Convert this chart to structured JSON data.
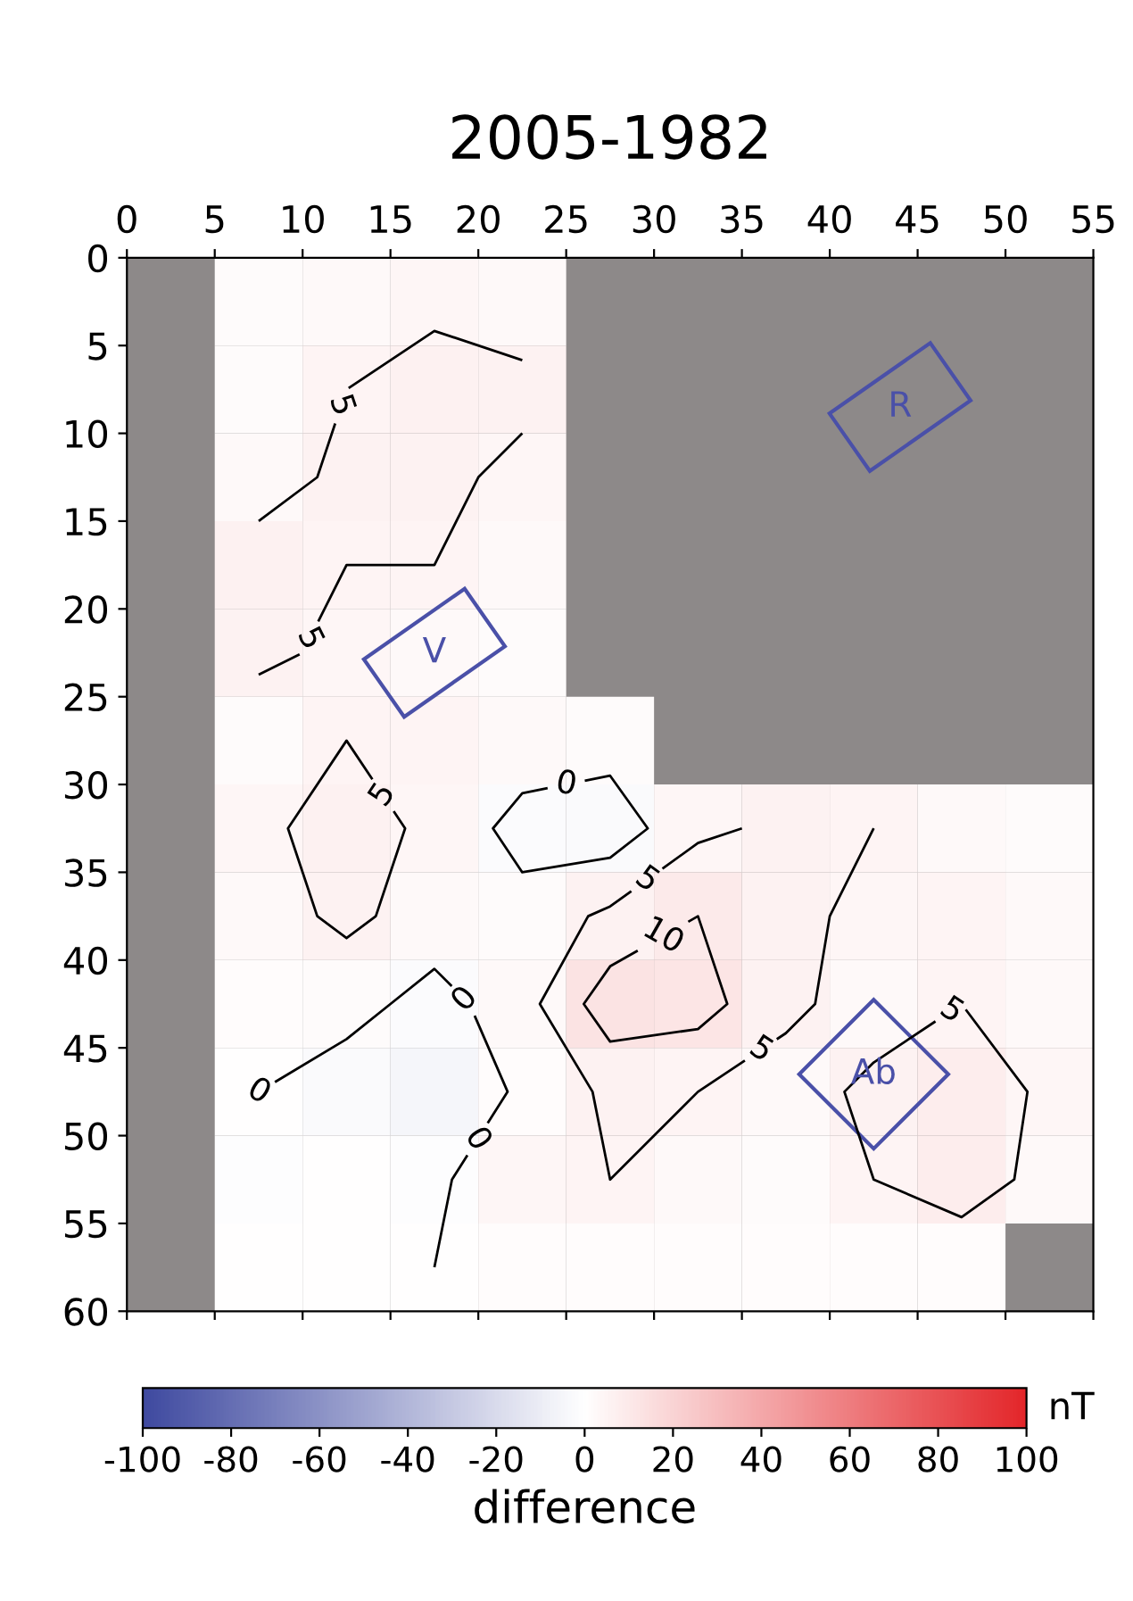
{
  "chart_data": {
    "type": "heatmap",
    "title": "2005-1982",
    "clabel": "difference",
    "xlim": [
      0,
      55
    ],
    "xticks": [
      0,
      5,
      10,
      15,
      20,
      25,
      30,
      35,
      40,
      45,
      50,
      55
    ],
    "ylim": [
      60,
      0
    ],
    "yticks": [
      0,
      5,
      10,
      15,
      20,
      25,
      30,
      35,
      40,
      45,
      50,
      55,
      60
    ],
    "clim": [
      -100,
      100
    ],
    "cticks": [
      -100,
      -80,
      -60,
      -40,
      -20,
      0,
      20,
      40,
      60,
      80,
      100
    ],
    "colors": [
      "#3f4aa0",
      "#ffffff",
      "#e3262a"
    ],
    "cells": [
      [
        null,
        2,
        3,
        4,
        3,
        null,
        null,
        null,
        null,
        null,
        null
      ],
      [
        null,
        2,
        5,
        7,
        6,
        null,
        null,
        null,
        null,
        null,
        null
      ],
      [
        null,
        3,
        6,
        6,
        4,
        null,
        null,
        null,
        null,
        null,
        null
      ],
      [
        null,
        7,
        5,
        5,
        3,
        null,
        null,
        null,
        null,
        null,
        null
      ],
      [
        null,
        6,
        4,
        3,
        2,
        null,
        null,
        null,
        null,
        null,
        null
      ],
      [
        null,
        2,
        5,
        5,
        3,
        2,
        null,
        null,
        null,
        null,
        null
      ],
      [
        null,
        4,
        7,
        4,
        -2,
        -3,
        4,
        6,
        5,
        3,
        2
      ],
      [
        null,
        3,
        6,
        3,
        2,
        6,
        10,
        6,
        4,
        5,
        3
      ],
      [
        null,
        1,
        2,
        -2,
        3,
        13,
        12,
        6,
        3,
        5,
        3
      ],
      [
        null,
        0,
        -3,
        -5,
        1,
        6,
        5,
        3,
        6,
        8,
        4
      ],
      [
        null,
        -1,
        0,
        -1,
        4,
        5,
        3,
        2,
        5,
        8,
        3
      ],
      [
        null,
        0,
        0,
        0,
        1,
        1,
        1,
        1,
        1,
        1,
        null
      ]
    ],
    "annotations": [
      "0",
      "5",
      "10",
      "R",
      "V",
      "Ab",
      "nT"
    ]
  }
}
